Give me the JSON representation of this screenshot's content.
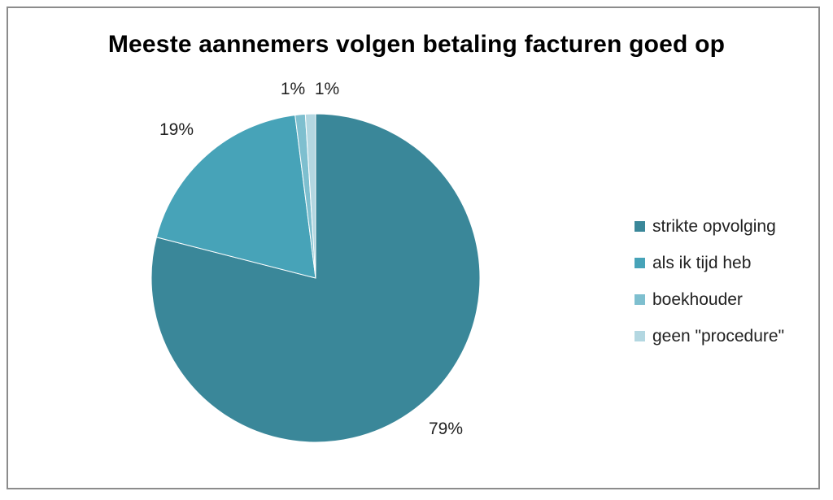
{
  "chart_data": {
    "type": "pie",
    "title": "Meeste aannemers volgen betaling facturen goed op",
    "categories": [
      "strikte opvolging",
      "als ik tijd heb",
      "boekhouder",
      "geen \"procedure\""
    ],
    "values": [
      79,
      19,
      1,
      1
    ],
    "labels": [
      "79%",
      "19%",
      "1%",
      "1%"
    ],
    "colors": [
      "#3a8799",
      "#47a3b8",
      "#7ebfcf",
      "#b3d7e1"
    ],
    "legend": "right"
  }
}
